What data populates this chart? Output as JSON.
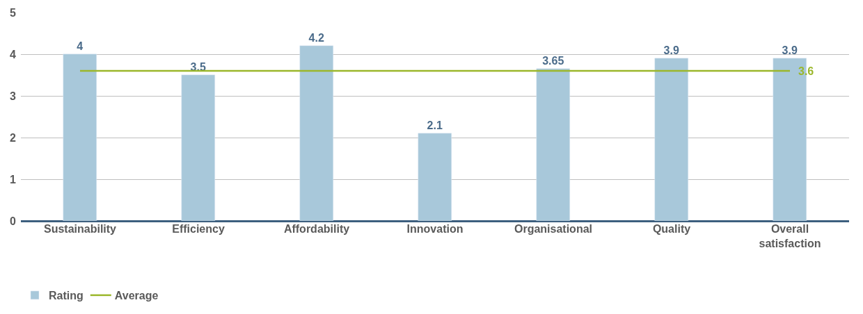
{
  "chart_data": {
    "type": "bar",
    "categories": [
      "Sustainability",
      "Efficiency",
      "Affordability",
      "Innovation",
      "Organisational",
      "Quality",
      "Overall satisfaction"
    ],
    "series": [
      {
        "name": "Rating",
        "color": "#a8c8da",
        "values": [
          4,
          3.5,
          4.2,
          2.1,
          3.65,
          3.9,
          3.9
        ],
        "value_labels": [
          "4",
          "3.5",
          "4.2",
          "2.1",
          "3.65",
          "3.9",
          "3.9"
        ]
      },
      {
        "name": "Average",
        "type": "line",
        "color": "#9bb72b",
        "values": [
          3.6,
          3.6,
          3.6,
          3.6,
          3.6,
          3.6,
          3.6
        ],
        "value_labels": [
          null,
          null,
          null,
          null,
          null,
          null,
          "3.6"
        ]
      }
    ],
    "ylim": [
      0,
      5
    ],
    "yticks": [
      0,
      1,
      2,
      3,
      4,
      5
    ],
    "grid": "y",
    "legend": "bottom left",
    "marker": "none",
    "line_style": "solid"
  }
}
